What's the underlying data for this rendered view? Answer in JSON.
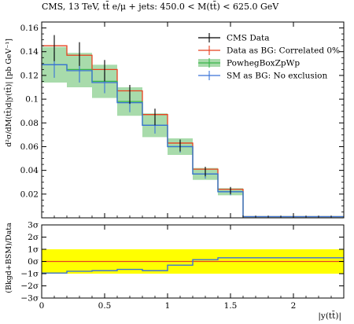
{
  "chart_data": {
    "type": "line",
    "title": "CMS, 13 TeV, tt̄ e/μ + jets: 450.0 < M(tt̄) < 625.0 GeV",
    "xlabel": "|y(tt̄)|",
    "ylabel": "d²σ/dM(tt̄)d|y(tt̄)| [pb GeV⁻¹]",
    "ratio_ylabel": "(Bkgd+BSM)/Data",
    "xlim": [
      0,
      2.4
    ],
    "ylim": [
      0,
      0.165
    ],
    "ratio_ylim": [
      -3,
      3
    ],
    "x_ticks": [
      "0",
      "0.5",
      "1",
      "1.5",
      "2"
    ],
    "x_tick_values": [
      0,
      0.5,
      1,
      1.5,
      2
    ],
    "y_ticks": [
      "0.02",
      "0.04",
      "0.06",
      "0.08",
      "0.1",
      "0.12",
      "0.14",
      "0.16"
    ],
    "y_tick_values": [
      0.02,
      0.04,
      0.06,
      0.08,
      0.1,
      0.12,
      0.14,
      0.16
    ],
    "ratio_ticks": [
      "3σ",
      "2σ",
      "1σ",
      "0σ",
      "−1σ",
      "−2σ",
      "−3σ"
    ],
    "ratio_tick_values": [
      3,
      2,
      1,
      0,
      -1,
      -2,
      -3
    ],
    "bin_edges": [
      0,
      0.2,
      0.4,
      0.6,
      0.8,
      1.0,
      1.2,
      1.4,
      1.6,
      2.4
    ],
    "legend_position": "top-right",
    "series": [
      {
        "name": "CMS Data",
        "color": "#000000",
        "values": [
          0.143,
          0.138,
          0.124,
          0.104,
          0.085,
          0.061,
          0.039,
          0.023,
          0.0
        ],
        "errors": [
          0.011,
          0.01,
          0.009,
          0.008,
          0.007,
          0.005,
          0.004,
          0.003,
          0.0
        ]
      },
      {
        "name": "Data as BG: Correlated 0%",
        "color": "#e8411f",
        "values": [
          0.145,
          0.137,
          0.125,
          0.107,
          0.087,
          0.063,
          0.041,
          0.024,
          0.001
        ]
      },
      {
        "name": "PowhegBoxZpWp",
        "color": "#38b54a",
        "band_color": "#a8dbab",
        "values": [
          0.129,
          0.125,
          0.115,
          0.098,
          0.078,
          0.06,
          0.037,
          0.022,
          0.001
        ],
        "band_low": [
          0.114,
          0.11,
          0.101,
          0.086,
          0.068,
          0.053,
          0.032,
          0.019,
          0.001
        ],
        "band_high": [
          0.144,
          0.139,
          0.129,
          0.11,
          0.088,
          0.067,
          0.042,
          0.025,
          0.001
        ]
      },
      {
        "name": "SM as BG: No exclusion",
        "color": "#3a72d8",
        "values": [
          0.129,
          0.124,
          0.114,
          0.097,
          0.078,
          0.06,
          0.037,
          0.022,
          0.001
        ],
        "errors": [
          0.011,
          0.01,
          0.009,
          0.008,
          0.007,
          0.005,
          0.004,
          0.003,
          0.0
        ],
        "ratio_values": [
          -0.95,
          -0.8,
          -0.75,
          -0.65,
          -0.75,
          -0.3,
          0.15,
          0.3,
          0.3
        ]
      }
    ],
    "ratio_band": {
      "low": -1,
      "high": 1,
      "color": "#ffff00"
    },
    "ratio_reference": {
      "value": 0,
      "color": "#e8411f"
    }
  }
}
